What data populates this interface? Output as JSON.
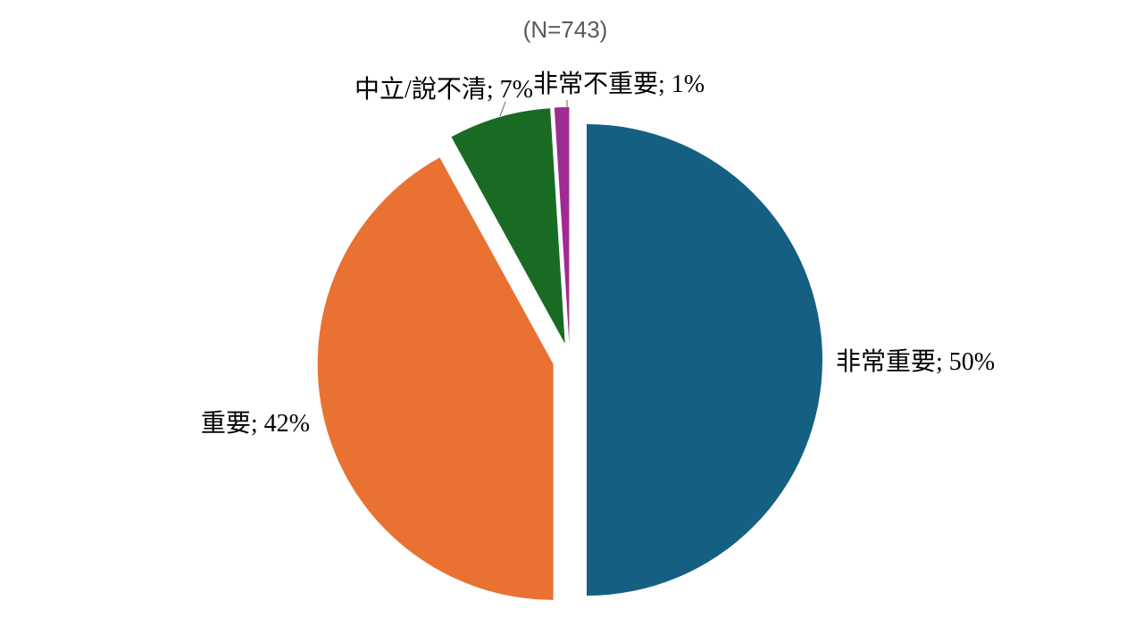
{
  "title": "(N=743)",
  "chart_data": {
    "type": "pie",
    "title": "(N=743)",
    "sample_size_label": "(N=743)",
    "n": 743,
    "start_angle_deg": 0,
    "direction": "clockwise",
    "explode": true,
    "legend": "none",
    "background": "#ffffff",
    "title_color": "#595959",
    "label_color": "#000000",
    "slices": [
      {
        "id": "very-important",
        "label": "非常重要",
        "value": 50,
        "unit": "%",
        "color": "#156082",
        "data_label": "非常重要; 50%"
      },
      {
        "id": "important",
        "label": "重要",
        "value": 42,
        "unit": "%",
        "color": "#E97132",
        "data_label": "重要; 42%"
      },
      {
        "id": "neutral-unsure",
        "label": "中立/說不清",
        "value": 7,
        "unit": "%",
        "color": "#196B24",
        "data_label": "中立/說不清; 7%"
      },
      {
        "id": "very-unimportant",
        "label": "非常不重要",
        "value": 1,
        "unit": "%",
        "color": "#A02B93",
        "data_label": "非常不重要; 1%"
      }
    ]
  }
}
